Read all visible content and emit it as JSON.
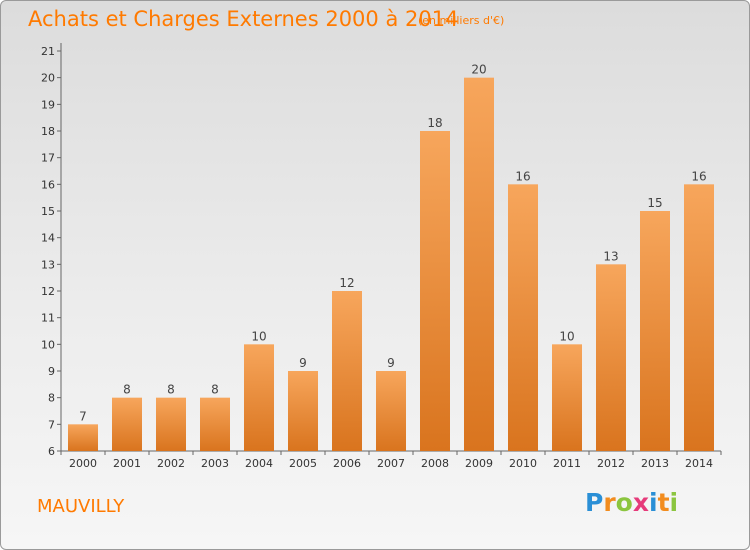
{
  "header": {
    "title": "Achats et Charges Externes 2000 à 2014",
    "unit": "(en milliers d'€)"
  },
  "footer": {
    "commune": "MAUVILLY",
    "logo_letters": [
      "P",
      "r",
      "o",
      "x",
      "i",
      "t",
      "i"
    ],
    "logo_colors": [
      "#2a8fd6",
      "#f28c1e",
      "#8bc53f",
      "#e63a7a",
      "#2a8fd6",
      "#f28c1e",
      "#8bc53f"
    ]
  },
  "colors": {
    "accent": "#ff7a00",
    "bar_light": "#f7a65c",
    "bar_dark": "#d9741e"
  },
  "chart_data": {
    "type": "bar",
    "title": "Achats et Charges Externes 2000 à 2014",
    "subtitle": "(en milliers d'€)",
    "categories": [
      "2000",
      "2001",
      "2002",
      "2003",
      "2004",
      "2005",
      "2006",
      "2007",
      "2008",
      "2009",
      "2010",
      "2011",
      "2012",
      "2013",
      "2014"
    ],
    "values": [
      7,
      8,
      8,
      8,
      10,
      9,
      12,
      9,
      18,
      20,
      16,
      10,
      13,
      15,
      16
    ],
    "yticks": [
      6,
      7,
      8,
      9,
      10,
      11,
      12,
      13,
      14,
      15,
      16,
      17,
      18,
      19,
      20,
      21
    ],
    "ylim": [
      6,
      21
    ],
    "grid": false,
    "data_labels": true
  }
}
